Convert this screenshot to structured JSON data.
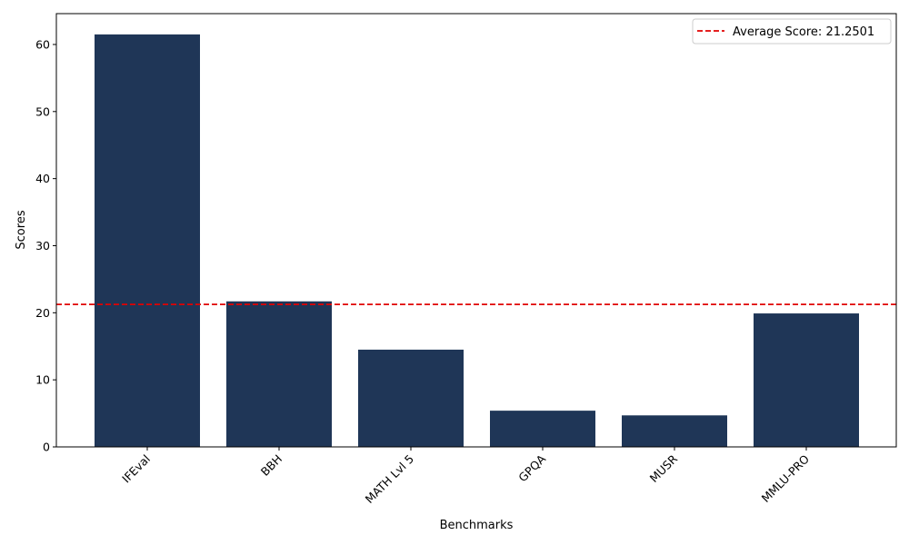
{
  "chart_data": {
    "type": "bar",
    "categories": [
      "IFEval",
      "BBH",
      "MATH Lvl 5",
      "GPQA",
      "MUSR",
      "MMLU-PRO"
    ],
    "values": [
      61.5,
      21.7,
      14.5,
      5.4,
      4.7,
      19.9
    ],
    "xlabel": "Benchmarks",
    "ylabel": "Scores",
    "ylim": [
      0,
      64.6
    ],
    "yticks": [
      0,
      10,
      20,
      30,
      40,
      50,
      60
    ],
    "bar_color": "#1f3657",
    "grid": false,
    "reference_line": {
      "value": 21.2501,
      "label": "Average Score: 21.2501",
      "color": "#e00000",
      "style": "dashed"
    },
    "legend_position": "top-right"
  }
}
